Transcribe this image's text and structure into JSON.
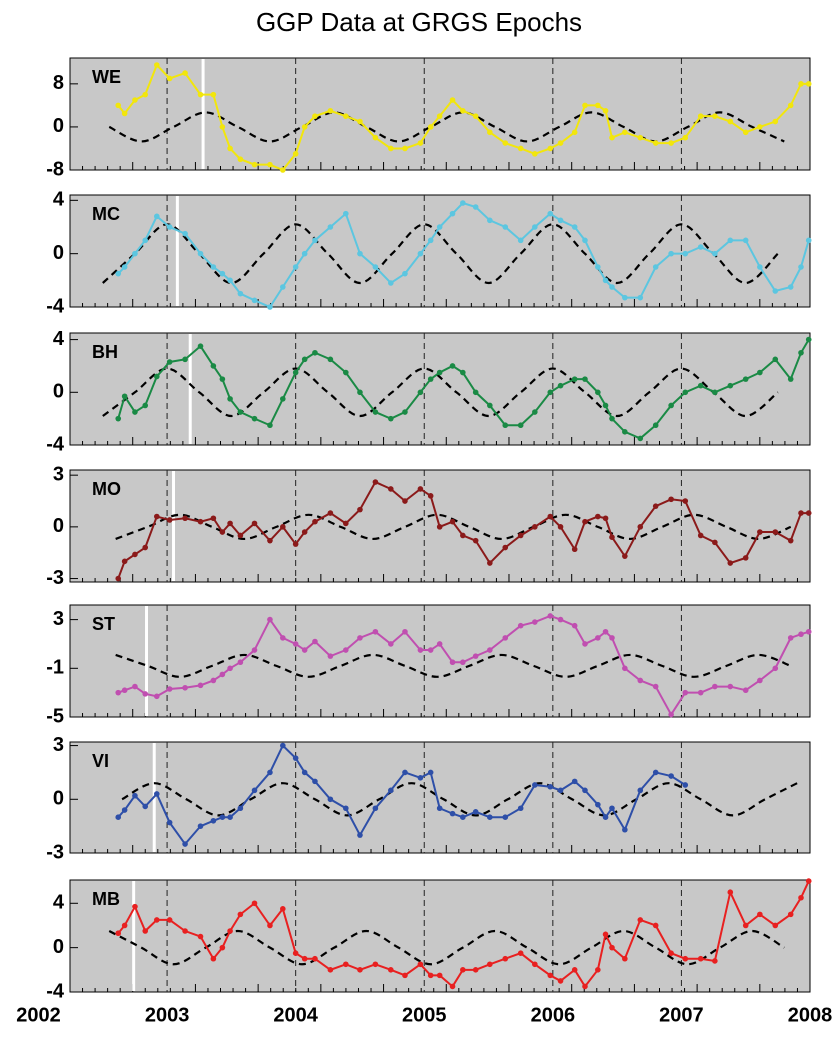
{
  "chart_data": {
    "type": "line",
    "title": "GGP Data at GRGS Epochs",
    "x": [
      2002.62,
      2002.67,
      2002.75,
      2002.83,
      2002.92,
      2003.02,
      2003.14,
      2003.26,
      2003.36,
      2003.43,
      2003.49,
      2003.57,
      2003.68,
      2003.8,
      2003.9,
      2004.0,
      2004.07,
      2004.15,
      2004.27,
      2004.39,
      2004.5,
      2004.62,
      2004.74,
      2004.85,
      2004.97,
      2005.05,
      2005.12,
      2005.22,
      2005.3,
      2005.4,
      2005.51,
      2005.63,
      2005.75,
      2005.86,
      2005.98,
      2006.06,
      2006.17,
      2006.25,
      2006.35,
      2006.41,
      2006.46,
      2006.56,
      2006.68,
      2006.8,
      2006.92,
      2007.03,
      2007.15,
      2007.26,
      2007.38,
      2007.5,
      2007.61,
      2007.73,
      2007.85,
      2007.93,
      2007.99
    ],
    "xlim": [
      2002,
      2008
    ],
    "xticks": [
      2002,
      2003,
      2004,
      2005,
      2006,
      2007,
      2008
    ],
    "panels": [
      {
        "label": "WE",
        "color": "#f2e60c",
        "ylim": [
          -8,
          12.8
        ],
        "yticks": [
          8,
          0,
          -8
        ],
        "values": [
          4,
          2.5,
          5,
          6,
          11.5,
          9,
          10,
          6,
          6,
          0,
          -4,
          -6,
          -7,
          -7,
          -8,
          -5,
          0,
          2,
          3,
          2,
          1,
          -2,
          -4,
          -4,
          -3,
          0,
          2,
          5,
          3,
          2,
          -1,
          -3,
          -4,
          -5,
          -4,
          -3,
          -1,
          4,
          4,
          3,
          -2,
          -1,
          -2,
          -3,
          -3,
          -2,
          2,
          2,
          1,
          -1,
          0,
          1,
          4,
          8,
          8
        ],
        "model_x": [
          2002.55,
          2002.8,
          2003.05,
          2003.3,
          2003.55,
          2003.8,
          2004.05,
          2004.3,
          2004.55,
          2004.8,
          2005.05,
          2005.3,
          2005.55,
          2005.8,
          2006.05,
          2006.3,
          2006.55,
          2006.8,
          2007.05,
          2007.3,
          2007.55,
          2007.8
        ],
        "model": [
          0,
          -2.7,
          0,
          2.7,
          0,
          -2.7,
          0,
          2.7,
          0,
          -2.7,
          0,
          2.7,
          0,
          -2.7,
          0,
          2.7,
          0,
          -2.7,
          0,
          2.7,
          0,
          -2.7
        ],
        "marker_x": 2003.28
      },
      {
        "label": "MC",
        "color": "#5cc6e0",
        "ylim": [
          -4,
          4.4
        ],
        "yticks": [
          4,
          0,
          -4
        ],
        "values": [
          -1.5,
          -1,
          0,
          1,
          2.8,
          2,
          1.5,
          0,
          -1,
          -1.5,
          -2,
          -3,
          -3.5,
          -4,
          -2.5,
          -1,
          0,
          1,
          2,
          3,
          0,
          -1,
          -2.2,
          -1.5,
          0,
          1,
          2,
          3,
          3.8,
          3.5,
          2.5,
          2,
          1,
          2,
          3,
          2.5,
          2,
          1,
          -1,
          -2,
          -2.5,
          -3.3,
          -3.3,
          -1,
          0,
          0,
          0.5,
          0,
          1,
          1,
          -1,
          -2.8,
          -2.5,
          -1,
          1
        ],
        "model_x": [
          2002.5,
          2002.75,
          2003,
          2003.25,
          2003.5,
          2003.75,
          2004,
          2004.25,
          2004.5,
          2004.75,
          2005,
          2005.25,
          2005.5,
          2005.75,
          2006,
          2006.25,
          2006.5,
          2006.75,
          2007,
          2007.25,
          2007.5,
          2007.75
        ],
        "model": [
          -2.2,
          0,
          2.2,
          0,
          -2.2,
          0,
          2.2,
          0,
          -2.2,
          0,
          2.2,
          0,
          -2.2,
          0,
          2.2,
          0,
          -2.2,
          0,
          2.2,
          0,
          -2.2,
          0
        ],
        "marker_x": 2003.08
      },
      {
        "label": "BH",
        "color": "#1a8a45",
        "ylim": [
          -4,
          4.5
        ],
        "yticks": [
          4,
          0,
          -4
        ],
        "values": [
          -2,
          -0.3,
          -1.5,
          -1,
          1.2,
          2.3,
          2.5,
          3.5,
          2,
          1,
          -0.5,
          -1.5,
          -2,
          -2.5,
          -0.5,
          1.5,
          2.5,
          3,
          2.5,
          1.5,
          0,
          -1.5,
          -2,
          -1.5,
          0,
          1,
          1.5,
          2,
          1.5,
          0,
          -1,
          -2.5,
          -2.5,
          -1.5,
          0,
          0.5,
          1,
          1,
          0,
          -1,
          -2,
          -3,
          -3.5,
          -2.5,
          -1,
          0,
          0.5,
          0,
          0.5,
          1,
          1.5,
          2.5,
          1,
          3,
          4
        ],
        "model_x": [
          2002.5,
          2002.75,
          2003,
          2003.25,
          2003.5,
          2003.75,
          2004,
          2004.25,
          2004.5,
          2004.75,
          2005,
          2005.25,
          2005.5,
          2005.75,
          2006,
          2006.25,
          2006.5,
          2006.75,
          2007,
          2007.25,
          2007.5,
          2007.75
        ],
        "model": [
          -1.8,
          0,
          1.8,
          0,
          -1.8,
          0,
          1.8,
          0,
          -1.8,
          0,
          1.8,
          0,
          -1.8,
          0,
          1.8,
          0,
          -1.8,
          0,
          1.8,
          0,
          -1.8,
          0
        ],
        "marker_x": 2003.18
      },
      {
        "label": "MO",
        "color": "#8b1a1a",
        "ylim": [
          -3.2,
          3.3
        ],
        "yticks": [
          3,
          0,
          -3
        ],
        "values": [
          -3,
          -2,
          -1.6,
          -1.2,
          0.6,
          0.4,
          0.5,
          0.3,
          0.5,
          -0.3,
          0.2,
          -0.5,
          0.2,
          -0.8,
          0,
          -1,
          -0.3,
          0.3,
          0.8,
          0.2,
          1,
          2.6,
          2.2,
          1.5,
          2.2,
          1.8,
          0,
          0.3,
          -0.5,
          -0.8,
          -2.1,
          -1.2,
          -0.5,
          0,
          0.6,
          0,
          -1.3,
          0.3,
          0.6,
          0.5,
          -0.6,
          -1.7,
          0,
          1.2,
          1.6,
          1.5,
          -0.5,
          -0.9,
          -2.1,
          -1.8,
          -0.3,
          -0.3,
          -0.8,
          0.8,
          0.8
        ],
        "model_x": [
          2002.6,
          2002.85,
          2003.1,
          2003.35,
          2003.6,
          2003.85,
          2004.1,
          2004.35,
          2004.6,
          2004.85,
          2005.1,
          2005.35,
          2005.6,
          2005.85,
          2006.1,
          2006.35,
          2006.6,
          2006.85,
          2007.1,
          2007.35,
          2007.6,
          2007.85
        ],
        "model": [
          -0.7,
          0,
          0.7,
          0,
          -0.7,
          0,
          0.7,
          0,
          -0.7,
          0,
          0.7,
          0,
          -0.7,
          0,
          0.7,
          0,
          -0.7,
          0,
          0.7,
          0,
          -0.7,
          0
        ],
        "marker_x": 2003.05
      },
      {
        "label": "ST",
        "color": "#c04fb0",
        "ylim": [
          -5,
          4.2
        ],
        "yticks": [
          3,
          -1,
          -5
        ],
        "values": [
          -3,
          -2.8,
          -2.5,
          -3.1,
          -3.3,
          -2.7,
          -2.6,
          -2.4,
          -2,
          -1.5,
          -1,
          -0.5,
          0.5,
          3,
          1.5,
          1,
          0.5,
          1.2,
          0,
          0.5,
          1.5,
          2,
          1,
          2,
          0.5,
          0.5,
          1,
          -0.5,
          -0.5,
          0,
          0.5,
          1.5,
          2.5,
          2.8,
          3.3,
          3,
          2.5,
          1,
          1.5,
          2,
          1.5,
          -1,
          -2,
          -2.5,
          -4.8,
          -3,
          -3,
          -2.5,
          -2.5,
          -2.8,
          -2,
          -1,
          1.5,
          1.8,
          2
        ],
        "model_x": [
          2002.6,
          2002.85,
          2003.1,
          2003.35,
          2003.6,
          2003.85,
          2004.1,
          2004.35,
          2004.6,
          2004.85,
          2005.1,
          2005.35,
          2005.6,
          2005.85,
          2006.1,
          2006.35,
          2006.6,
          2006.85,
          2007.1,
          2007.35,
          2007.6,
          2007.85
        ],
        "model": [
          0.1,
          -0.8,
          -1.7,
          -0.8,
          0.1,
          -0.8,
          -1.7,
          -0.8,
          0.1,
          -0.8,
          -1.7,
          -0.8,
          0.1,
          -0.8,
          -1.7,
          -0.8,
          0.1,
          -0.8,
          -1.7,
          -0.8,
          0.1,
          -0.8
        ],
        "marker_x": 2002.84
      },
      {
        "label": "VI",
        "color": "#2e4fa8",
        "ylim": [
          -3,
          3.2
        ],
        "yticks": [
          3,
          0,
          -3
        ],
        "values": [
          -1,
          -0.6,
          0.2,
          -0.4,
          0.3,
          -1.3,
          -2.5,
          -1.5,
          -1.2,
          -1,
          -1,
          -0.5,
          0.5,
          1.5,
          3,
          2.3,
          1.5,
          1,
          0,
          -0.5,
          -2,
          -0.5,
          0.5,
          1.5,
          1.2,
          1.5,
          -0.5,
          -0.8,
          -1,
          -0.7,
          -1,
          -1,
          -0.5,
          0.8,
          0.7,
          0.5,
          1,
          0.5,
          -0.3,
          -1,
          -0.5,
          -1.7,
          0.5,
          1.5,
          1.3,
          0.8,
          null,
          null,
          null,
          null,
          null,
          null,
          null,
          null,
          null
        ],
        "model_x": [
          2002.65,
          2002.9,
          2003.15,
          2003.4,
          2003.65,
          2003.9,
          2004.15,
          2004.4,
          2004.65,
          2004.9,
          2005.15,
          2005.4,
          2005.65,
          2005.9,
          2006.15,
          2006.4,
          2006.65,
          2006.9,
          2007.15,
          2007.4,
          2007.65,
          2007.9
        ],
        "model": [
          0,
          0.9,
          0,
          -0.9,
          0,
          0.9,
          0,
          -0.9,
          0,
          0.9,
          0,
          -0.9,
          0,
          0.9,
          0,
          -0.9,
          0,
          0.9,
          0,
          -0.9,
          0,
          0.9
        ],
        "marker_x": 2002.9
      },
      {
        "label": "MB",
        "color": "#e82020",
        "ylim": [
          -4,
          6.1
        ],
        "yticks": [
          4,
          0,
          -4
        ],
        "values": [
          1.3,
          2,
          3.7,
          1.5,
          2.5,
          2.5,
          1.5,
          1,
          -1,
          0,
          1.5,
          3,
          4,
          2,
          3.5,
          -0.5,
          -1,
          -1,
          -2,
          -1.5,
          -2,
          -1.5,
          -2,
          -2.5,
          -1.5,
          -2.5,
          -2.5,
          -3.5,
          -2,
          -2,
          -1.5,
          -1,
          -0.5,
          -1.5,
          -2.5,
          -3,
          -2,
          -3.5,
          -2,
          1.2,
          0,
          -1,
          2.5,
          2,
          -0.5,
          -1,
          -1,
          -1.2,
          5,
          2,
          3,
          2,
          3,
          4.5,
          6
        ],
        "model_x": [
          2002.55,
          2002.8,
          2003.05,
          2003.3,
          2003.55,
          2003.8,
          2004.05,
          2004.3,
          2004.55,
          2004.8,
          2005.05,
          2005.3,
          2005.55,
          2005.8,
          2006.05,
          2006.3,
          2006.55,
          2006.8,
          2007.05,
          2007.3,
          2007.55,
          2007.8
        ],
        "model": [
          1.5,
          0,
          -1.5,
          0,
          1.5,
          0,
          -1.5,
          0,
          1.5,
          0,
          -1.5,
          0,
          1.5,
          0,
          -1.5,
          0,
          1.5,
          0,
          -1.5,
          0,
          1.5,
          0
        ],
        "marker_x": 2002.74
      }
    ]
  }
}
